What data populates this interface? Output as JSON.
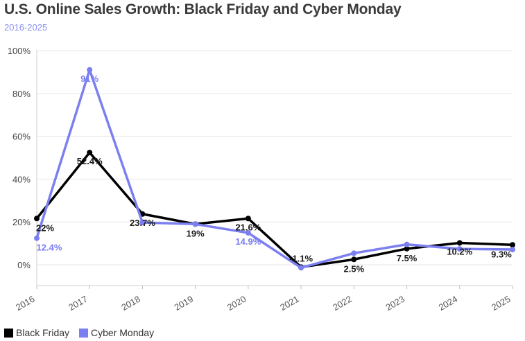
{
  "chart_data": {
    "type": "line",
    "title": "U.S. Online Sales Growth: Black Friday and Cyber Monday",
    "subtitle": "2016-2025",
    "xlabel": "",
    "ylabel": "",
    "ylim": [
      -10,
      100
    ],
    "yticks": [
      0,
      20,
      40,
      60,
      80,
      100
    ],
    "ytick_labels": [
      "0%",
      "20%",
      "40%",
      "60%",
      "80%",
      "100%"
    ],
    "categories": [
      "2016",
      "2017",
      "2018",
      "2019",
      "2020",
      "2021",
      "2022",
      "2023",
      "2024",
      "2025"
    ],
    "series": [
      {
        "name": "Black Friday",
        "color": "#000000",
        "values": [
          21.6,
          52.4,
          23.7,
          19,
          21.6,
          -1.1,
          2.5,
          7.5,
          10.2,
          9.3
        ],
        "labels": [
          "22%",
          "52.4%",
          "23.7%",
          "19%",
          "21.6%",
          "-1.1%",
          "2.5%",
          "7.5%",
          "10.2%",
          "9.3%"
        ]
      },
      {
        "name": "Cyber Monday",
        "color": "#7b7ff0",
        "values": [
          12.4,
          91,
          19.7,
          19,
          14.9,
          -1.4,
          5.4,
          9.5,
          7.4,
          7.1
        ],
        "labels": [
          "12.4%",
          "91%",
          null,
          null,
          "14.9%",
          null,
          null,
          null,
          null,
          null
        ]
      }
    ],
    "grid": true,
    "legend_position": "bottom-left"
  }
}
